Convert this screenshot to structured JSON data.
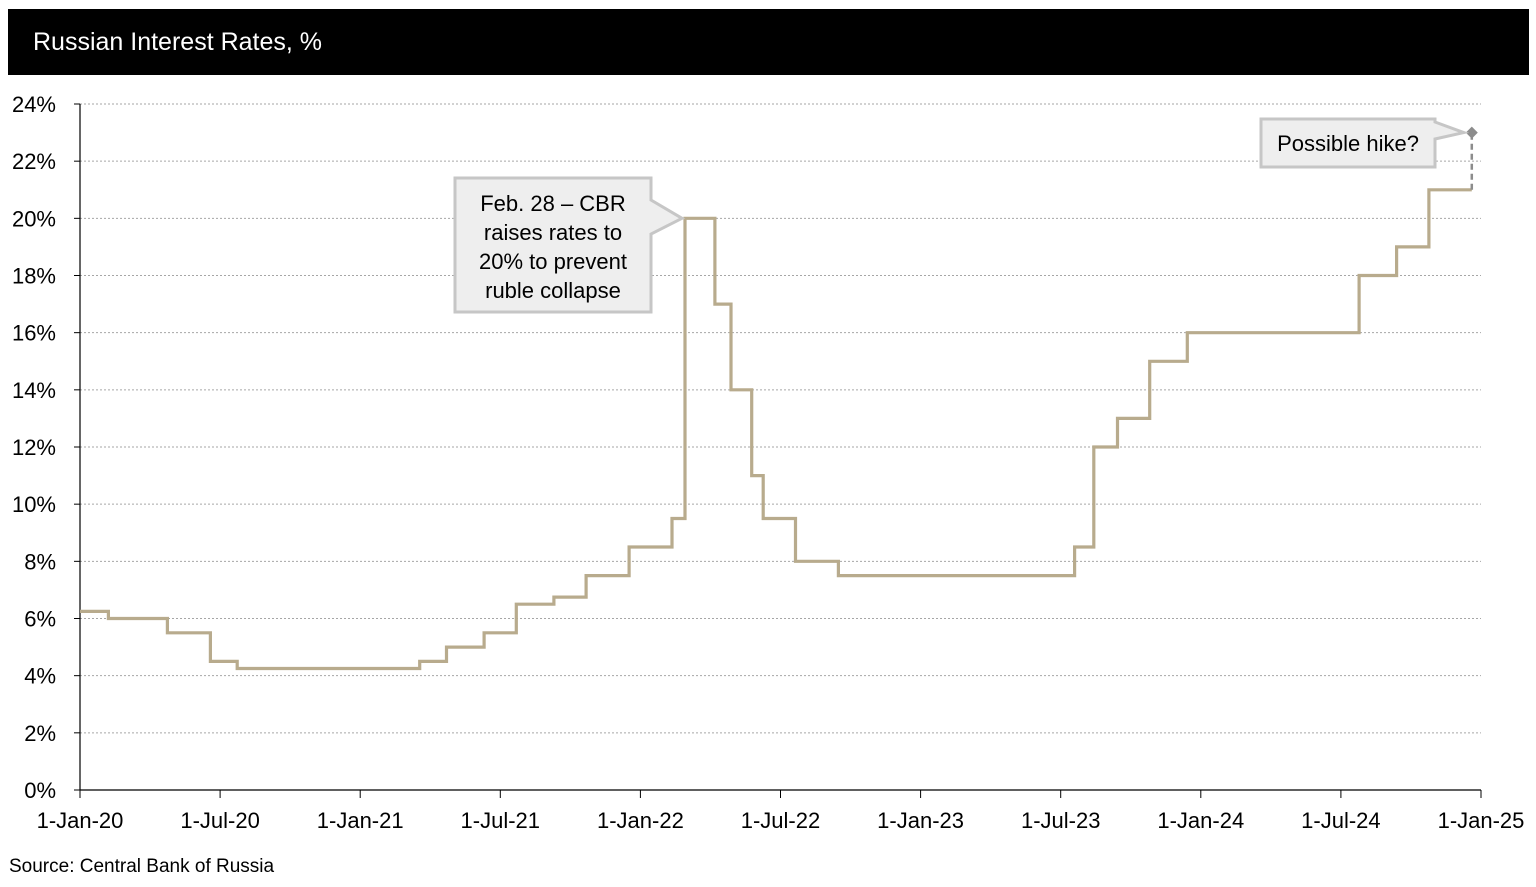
{
  "header": {
    "title": "Russian Interest Rates, %"
  },
  "source": "Source: Central Bank of Russia",
  "colors": {
    "series": "#b8ab8d",
    "forecast": "#8c8c8c",
    "grid": "#a6a6a6",
    "callout_fill": "#eeeeee",
    "callout_border": "#c6c6c6"
  },
  "chart_data": {
    "type": "line",
    "style": "step",
    "title": "Russian Interest Rates, %",
    "xlabel": "",
    "ylabel": "",
    "x_ticks": [
      "1-Jan-20",
      "1-Jul-20",
      "1-Jan-21",
      "1-Jul-21",
      "1-Jan-22",
      "1-Jul-22",
      "1-Jan-23",
      "1-Jul-23",
      "1-Jan-24",
      "1-Jul-24",
      "1-Jan-25"
    ],
    "y_ticks": [
      "0%",
      "2%",
      "4%",
      "6%",
      "8%",
      "10%",
      "12%",
      "14%",
      "16%",
      "18%",
      "20%",
      "22%",
      "24%"
    ],
    "xlim": [
      "2020-01-01",
      "2025-01-01"
    ],
    "ylim": [
      0,
      24
    ],
    "grid": "horizontal dotted",
    "series": [
      {
        "points": [
          [
            "2020-01-01",
            6.25
          ],
          [
            "2020-02-07",
            6.0
          ],
          [
            "2020-04-24",
            5.5
          ],
          [
            "2020-06-19",
            4.5
          ],
          [
            "2020-07-24",
            4.25
          ],
          [
            "2021-03-19",
            4.5
          ],
          [
            "2021-04-23",
            5.0
          ],
          [
            "2021-06-11",
            5.5
          ],
          [
            "2021-07-23",
            6.5
          ],
          [
            "2021-09-10",
            6.75
          ],
          [
            "2021-10-22",
            7.5
          ],
          [
            "2021-12-17",
            8.5
          ],
          [
            "2022-02-11",
            9.5
          ],
          [
            "2022-02-28",
            20.0
          ],
          [
            "2022-04-08",
            17.0
          ],
          [
            "2022-04-29",
            14.0
          ],
          [
            "2022-05-26",
            11.0
          ],
          [
            "2022-06-10",
            9.5
          ],
          [
            "2022-07-22",
            8.0
          ],
          [
            "2022-09-16",
            7.5
          ],
          [
            "2023-07-21",
            8.5
          ],
          [
            "2023-08-15",
            12.0
          ],
          [
            "2023-09-15",
            13.0
          ],
          [
            "2023-10-27",
            15.0
          ],
          [
            "2023-12-15",
            16.0
          ],
          [
            "2024-07-26",
            18.0
          ],
          [
            "2024-09-13",
            19.0
          ],
          [
            "2024-10-25",
            21.0
          ],
          [
            "2024-12-20",
            21.0
          ]
        ]
      }
    ],
    "forecast": {
      "from": [
        "2024-12-20",
        21.0
      ],
      "to": [
        "2024-12-20",
        23.0
      ]
    },
    "annotations": [
      {
        "id": "cbr-hike",
        "lines": [
          "Feb. 28 – CBR",
          "raises rates to",
          "20% to prevent",
          "ruble collapse"
        ]
      },
      {
        "id": "possible-hike",
        "lines": [
          "Possible hike?"
        ]
      }
    ]
  }
}
